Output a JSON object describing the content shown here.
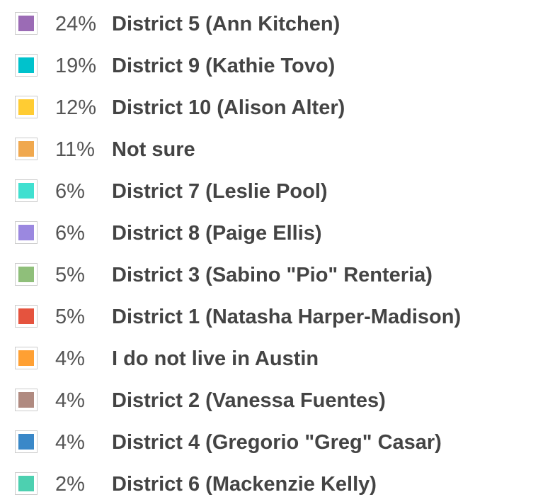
{
  "legend": {
    "items": [
      {
        "color": "#9b6bb5",
        "percent": "24%",
        "label": "District 5 (Ann Kitchen)"
      },
      {
        "color": "#00c2cc",
        "percent": "19%",
        "label": "District 9 (Kathie Tovo)"
      },
      {
        "color": "#ffcc33",
        "percent": "12%",
        "label": "District 10 (Alison Alter)"
      },
      {
        "color": "#f0a84e",
        "percent": "11%",
        "label": "Not sure"
      },
      {
        "color": "#40e0d0",
        "percent": "6%",
        "label": "District 7 (Leslie Pool)"
      },
      {
        "color": "#9b88e0",
        "percent": "6%",
        "label": "District 8 (Paige Ellis)"
      },
      {
        "color": "#8fbf7a",
        "percent": "5%",
        "label": "District 3 (Sabino \"Pio\" Renteria)"
      },
      {
        "color": "#e5533e",
        "percent": "5%",
        "label": "District 1 (Natasha Harper-Madison)"
      },
      {
        "color": "#ffa033",
        "percent": "4%",
        "label": "I do not live in Austin"
      },
      {
        "color": "#b08a80",
        "percent": "4%",
        "label": "District 2 (Vanessa Fuentes)"
      },
      {
        "color": "#3a88c8",
        "percent": "4%",
        "label": "District 4 (Gregorio \"Greg\" Casar)"
      },
      {
        "color": "#4dd0b0",
        "percent": "2%",
        "label": "District 6 (Mackenzie Kelly)"
      }
    ]
  }
}
